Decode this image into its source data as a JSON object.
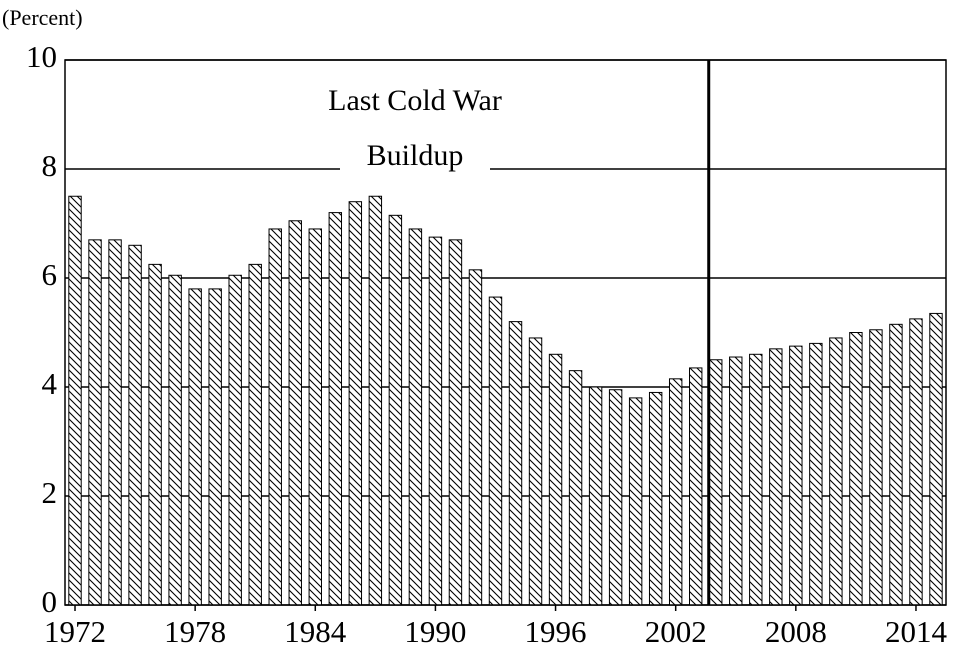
{
  "chart_data": {
    "type": "bar",
    "y_label": "(Percent)",
    "annotation": [
      "Last Cold War",
      "Buildup"
    ],
    "categories": [
      "1972",
      null,
      null,
      null,
      null,
      null,
      "1978",
      null,
      null,
      null,
      null,
      null,
      "1984",
      null,
      null,
      null,
      null,
      null,
      "1990",
      null,
      null,
      null,
      null,
      null,
      "1996",
      null,
      null,
      null,
      null,
      null,
      "2002",
      null,
      null,
      null,
      null,
      null,
      "2008",
      null,
      null,
      null,
      null,
      null,
      "2014",
      null
    ],
    "values": [
      7.5,
      6.7,
      6.7,
      6.6,
      6.25,
      6.05,
      5.8,
      5.8,
      6.05,
      6.25,
      6.9,
      7.05,
      6.9,
      7.2,
      7.4,
      7.5,
      7.15,
      6.9,
      6.75,
      6.7,
      6.15,
      5.65,
      5.2,
      4.9,
      4.6,
      4.3,
      4.0,
      3.95,
      3.8,
      3.9,
      4.15,
      4.35,
      4.5,
      4.55,
      4.6,
      4.7,
      4.75,
      4.8,
      4.9,
      5.0,
      5.05,
      5.15,
      5.25,
      5.35
    ],
    "color": "#000000",
    "ylim": [
      0,
      10
    ],
    "yticks": [
      0,
      2,
      4,
      6,
      8,
      10
    ],
    "grid": true
  }
}
